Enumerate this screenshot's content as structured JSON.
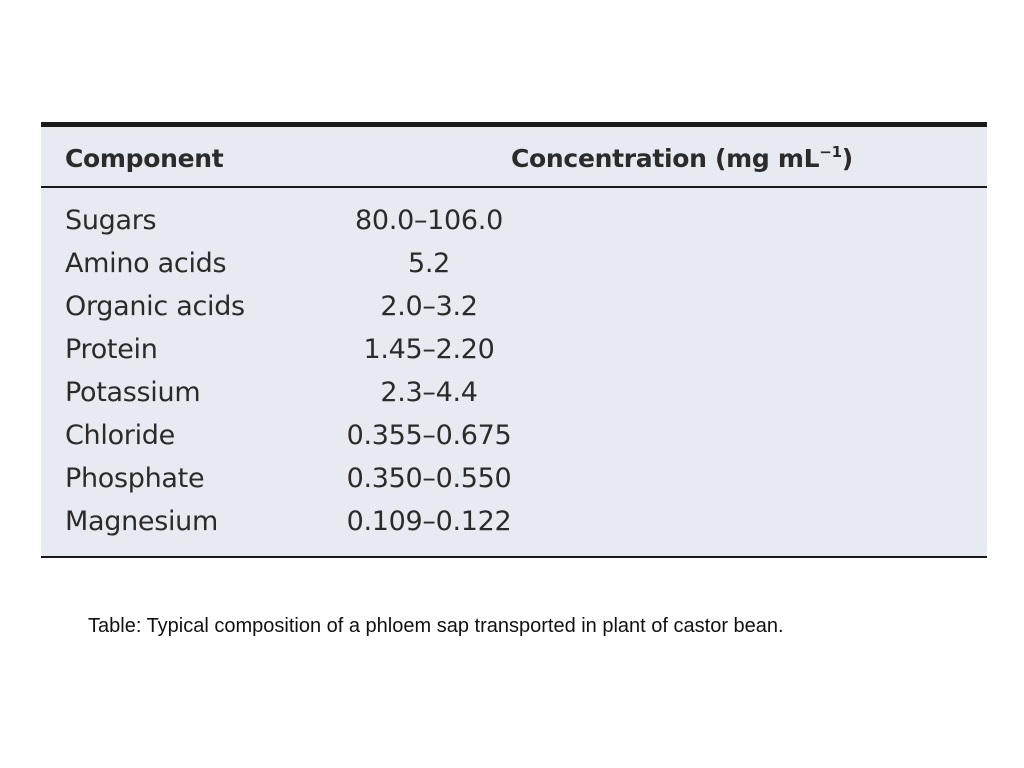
{
  "table": {
    "headers": {
      "component": "Component",
      "concentration": "Concentration (mg mL",
      "concentration_exponent": "−1",
      "concentration_close": ")"
    },
    "rows": [
      {
        "component": "Sugars",
        "concentration": "80.0–106.0"
      },
      {
        "component": "Amino acids",
        "concentration": "5.2"
      },
      {
        "component": "Organic acids",
        "concentration": "2.0–3.2"
      },
      {
        "component": "Protein",
        "concentration": "1.45–2.20"
      },
      {
        "component": "Potassium",
        "concentration": "2.3–4.4"
      },
      {
        "component": "Chloride",
        "concentration": "0.355–0.675"
      },
      {
        "component": "Phosphate",
        "concentration": "0.350–0.550"
      },
      {
        "component": "Magnesium",
        "concentration": "0.109–0.122"
      }
    ],
    "background_color": "#e7ebf1",
    "rule_color": "#1a1a1a"
  },
  "caption": "Table: Typical composition of a phloem sap transported in plant of castor bean."
}
